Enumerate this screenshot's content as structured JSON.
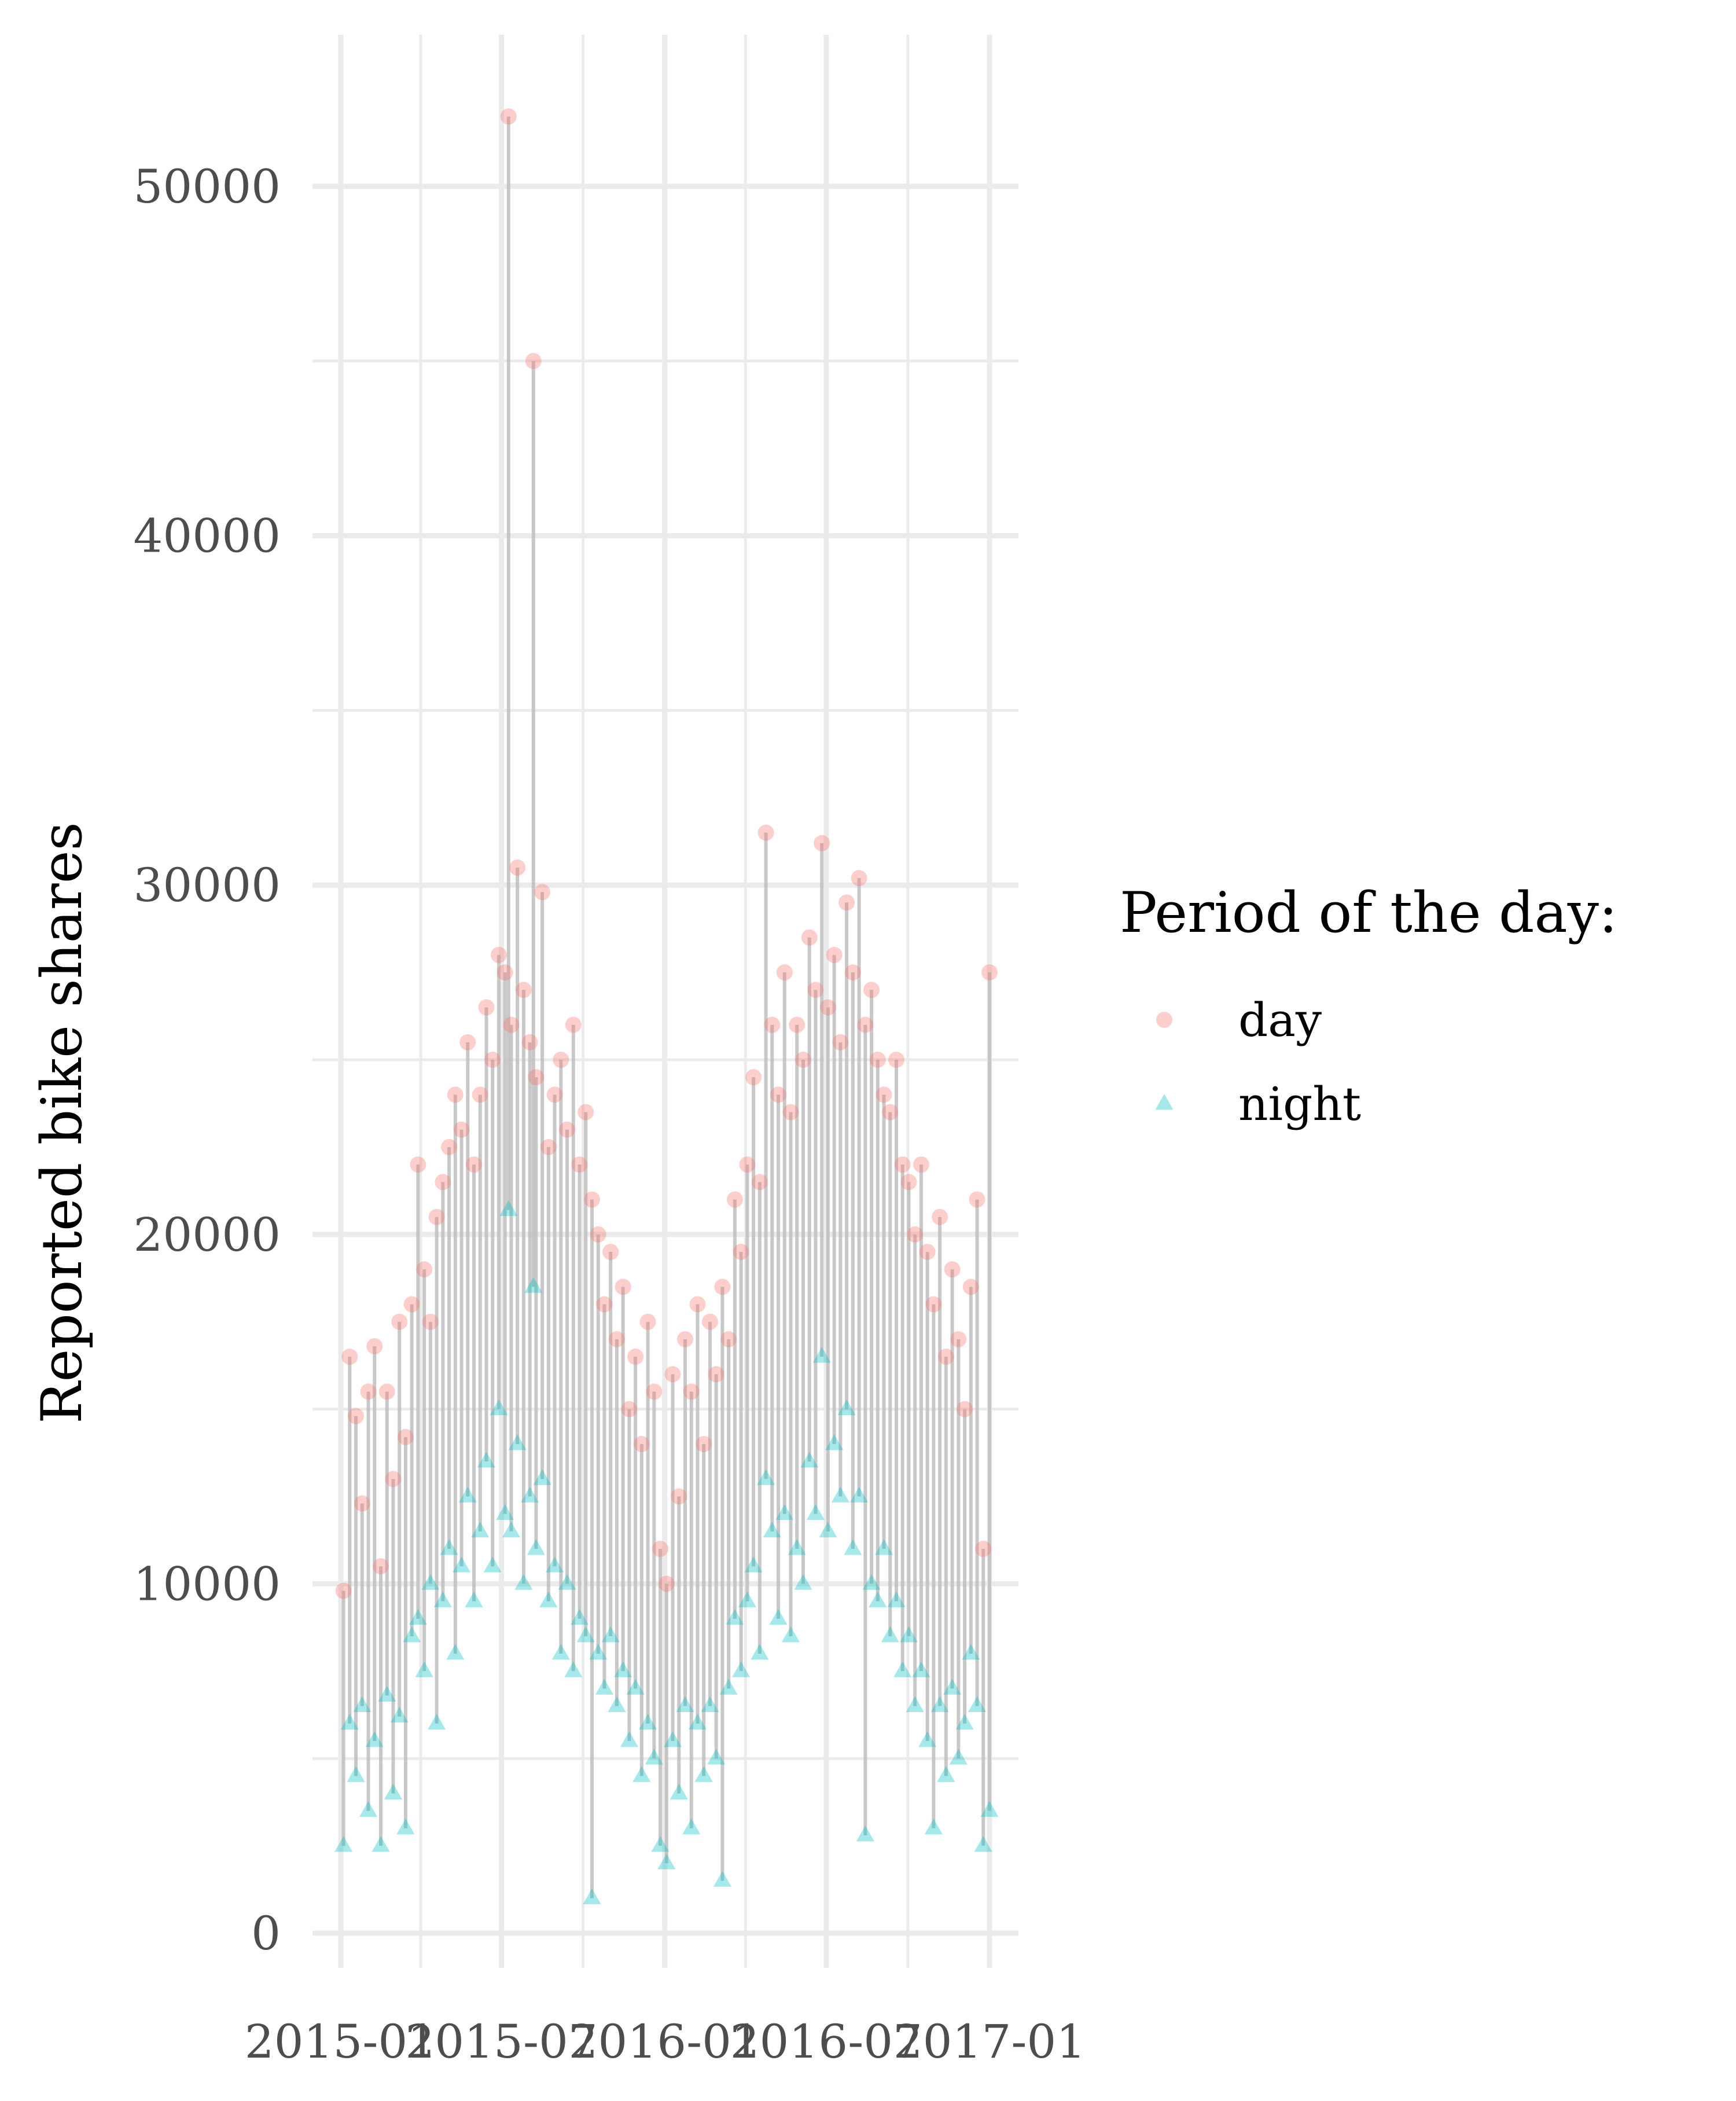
{
  "chart_data": {
    "type": "scatter",
    "title": "",
    "xlabel": "",
    "ylabel": "Reported bike shares",
    "ylim": [
      0,
      52000
    ],
    "xlim": [
      "2015-01-04",
      "2017-01-03"
    ],
    "x_ticks": [
      "2015-01",
      "2015-07",
      "2016-01",
      "2016-07",
      "2017-01"
    ],
    "y_ticks": [
      0,
      10000,
      20000,
      30000,
      40000,
      50000
    ],
    "grid": true,
    "legend": {
      "title": "Period of the day:",
      "placement": "right",
      "entries": [
        {
          "label": "day",
          "shape": "circle",
          "color": "#F8766D"
        },
        {
          "label": "night",
          "shape": "triangle",
          "color": "#00BFC4"
        }
      ]
    },
    "segment_color": "#BEBEBE",
    "series": [
      {
        "name": "day",
        "shape": "circle",
        "color": "#F8766D",
        "points": [
          [
            "2015-01-04",
            9800
          ],
          [
            "2015-01-11",
            16500
          ],
          [
            "2015-01-18",
            14800
          ],
          [
            "2015-01-25",
            12300
          ],
          [
            "2015-02-01",
            15500
          ],
          [
            "2015-02-08",
            16800
          ],
          [
            "2015-02-15",
            10500
          ],
          [
            "2015-02-22",
            15500
          ],
          [
            "2015-03-01",
            13000
          ],
          [
            "2015-03-08",
            17500
          ],
          [
            "2015-03-15",
            14200
          ],
          [
            "2015-03-22",
            18000
          ],
          [
            "2015-03-29",
            22000
          ],
          [
            "2015-04-05",
            19000
          ],
          [
            "2015-04-12",
            17500
          ],
          [
            "2015-04-19",
            20500
          ],
          [
            "2015-04-26",
            21500
          ],
          [
            "2015-05-03",
            22500
          ],
          [
            "2015-05-10",
            24000
          ],
          [
            "2015-05-17",
            23000
          ],
          [
            "2015-05-24",
            25500
          ],
          [
            "2015-05-31",
            22000
          ],
          [
            "2015-06-07",
            24000
          ],
          [
            "2015-06-14",
            26500
          ],
          [
            "2015-06-21",
            25000
          ],
          [
            "2015-06-28",
            28000
          ],
          [
            "2015-07-05",
            27500
          ],
          [
            "2015-07-09",
            52000
          ],
          [
            "2015-07-12",
            26000
          ],
          [
            "2015-07-19",
            30500
          ],
          [
            "2015-07-26",
            27000
          ],
          [
            "2015-08-02",
            25500
          ],
          [
            "2015-08-06",
            45000
          ],
          [
            "2015-08-09",
            24500
          ],
          [
            "2015-08-16",
            29800
          ],
          [
            "2015-08-23",
            22500
          ],
          [
            "2015-08-30",
            24000
          ],
          [
            "2015-09-06",
            25000
          ],
          [
            "2015-09-13",
            23000
          ],
          [
            "2015-09-20",
            26000
          ],
          [
            "2015-09-27",
            22000
          ],
          [
            "2015-10-04",
            23500
          ],
          [
            "2015-10-11",
            21000
          ],
          [
            "2015-10-18",
            20000
          ],
          [
            "2015-10-25",
            18000
          ],
          [
            "2015-11-01",
            19500
          ],
          [
            "2015-11-08",
            17000
          ],
          [
            "2015-11-15",
            18500
          ],
          [
            "2015-11-22",
            15000
          ],
          [
            "2015-11-29",
            16500
          ],
          [
            "2015-12-06",
            14000
          ],
          [
            "2015-12-13",
            17500
          ],
          [
            "2015-12-20",
            15500
          ],
          [
            "2015-12-27",
            11000
          ],
          [
            "2016-01-03",
            10000
          ],
          [
            "2016-01-10",
            16000
          ],
          [
            "2016-01-17",
            12500
          ],
          [
            "2016-01-24",
            17000
          ],
          [
            "2016-01-31",
            15500
          ],
          [
            "2016-02-07",
            18000
          ],
          [
            "2016-02-14",
            14000
          ],
          [
            "2016-02-21",
            17500
          ],
          [
            "2016-02-28",
            16000
          ],
          [
            "2016-03-06",
            18500
          ],
          [
            "2016-03-13",
            17000
          ],
          [
            "2016-03-20",
            21000
          ],
          [
            "2016-03-27",
            19500
          ],
          [
            "2016-04-03",
            22000
          ],
          [
            "2016-04-10",
            24500
          ],
          [
            "2016-04-17",
            21500
          ],
          [
            "2016-04-24",
            31500
          ],
          [
            "2016-05-01",
            26000
          ],
          [
            "2016-05-08",
            24000
          ],
          [
            "2016-05-15",
            27500
          ],
          [
            "2016-05-22",
            23500
          ],
          [
            "2016-05-29",
            26000
          ],
          [
            "2016-06-05",
            25000
          ],
          [
            "2016-06-12",
            28500
          ],
          [
            "2016-06-19",
            27000
          ],
          [
            "2016-06-26",
            31200
          ],
          [
            "2016-07-03",
            26500
          ],
          [
            "2016-07-10",
            28000
          ],
          [
            "2016-07-17",
            25500
          ],
          [
            "2016-07-24",
            29500
          ],
          [
            "2016-07-31",
            27500
          ],
          [
            "2016-08-07",
            30200
          ],
          [
            "2016-08-14",
            26000
          ],
          [
            "2016-08-21",
            27000
          ],
          [
            "2016-08-28",
            25000
          ],
          [
            "2016-09-04",
            24000
          ],
          [
            "2016-09-11",
            23500
          ],
          [
            "2016-09-18",
            25000
          ],
          [
            "2016-09-25",
            22000
          ],
          [
            "2016-10-02",
            21500
          ],
          [
            "2016-10-09",
            20000
          ],
          [
            "2016-10-16",
            22000
          ],
          [
            "2016-10-23",
            19500
          ],
          [
            "2016-10-30",
            18000
          ],
          [
            "2016-11-06",
            20500
          ],
          [
            "2016-11-13",
            16500
          ],
          [
            "2016-11-20",
            19000
          ],
          [
            "2016-11-27",
            17000
          ],
          [
            "2016-12-04",
            15000
          ],
          [
            "2016-12-11",
            18500
          ],
          [
            "2016-12-18",
            21000
          ],
          [
            "2016-12-25",
            11000
          ],
          [
            "2017-01-01",
            27500
          ]
        ]
      },
      {
        "name": "night",
        "shape": "triangle",
        "color": "#00BFC4",
        "points": [
          [
            "2015-01-04",
            2500
          ],
          [
            "2015-01-11",
            6000
          ],
          [
            "2015-01-18",
            4500
          ],
          [
            "2015-01-25",
            6500
          ],
          [
            "2015-02-01",
            3500
          ],
          [
            "2015-02-08",
            5500
          ],
          [
            "2015-02-15",
            2500
          ],
          [
            "2015-02-22",
            6800
          ],
          [
            "2015-03-01",
            4000
          ],
          [
            "2015-03-08",
            6200
          ],
          [
            "2015-03-15",
            3000
          ],
          [
            "2015-03-22",
            8500
          ],
          [
            "2015-03-29",
            9000
          ],
          [
            "2015-04-05",
            7500
          ],
          [
            "2015-04-12",
            10000
          ],
          [
            "2015-04-19",
            6000
          ],
          [
            "2015-04-26",
            9500
          ],
          [
            "2015-05-03",
            11000
          ],
          [
            "2015-05-10",
            8000
          ],
          [
            "2015-05-17",
            10500
          ],
          [
            "2015-05-24",
            12500
          ],
          [
            "2015-05-31",
            9500
          ],
          [
            "2015-06-07",
            11500
          ],
          [
            "2015-06-14",
            13500
          ],
          [
            "2015-06-21",
            10500
          ],
          [
            "2015-06-28",
            15000
          ],
          [
            "2015-07-05",
            12000
          ],
          [
            "2015-07-09",
            20700
          ],
          [
            "2015-07-12",
            11500
          ],
          [
            "2015-07-19",
            14000
          ],
          [
            "2015-07-26",
            10000
          ],
          [
            "2015-08-02",
            12500
          ],
          [
            "2015-08-06",
            18500
          ],
          [
            "2015-08-09",
            11000
          ],
          [
            "2015-08-16",
            13000
          ],
          [
            "2015-08-23",
            9500
          ],
          [
            "2015-08-30",
            10500
          ],
          [
            "2015-09-06",
            8000
          ],
          [
            "2015-09-13",
            10000
          ],
          [
            "2015-09-20",
            7500
          ],
          [
            "2015-09-27",
            9000
          ],
          [
            "2015-10-04",
            8500
          ],
          [
            "2015-10-11",
            1000
          ],
          [
            "2015-10-18",
            8000
          ],
          [
            "2015-10-25",
            7000
          ],
          [
            "2015-11-01",
            8500
          ],
          [
            "2015-11-08",
            6500
          ],
          [
            "2015-11-15",
            7500
          ],
          [
            "2015-11-22",
            5500
          ],
          [
            "2015-11-29",
            7000
          ],
          [
            "2015-12-06",
            4500
          ],
          [
            "2015-12-13",
            6000
          ],
          [
            "2015-12-20",
            5000
          ],
          [
            "2015-12-27",
            2500
          ],
          [
            "2016-01-03",
            2000
          ],
          [
            "2016-01-10",
            5500
          ],
          [
            "2016-01-17",
            4000
          ],
          [
            "2016-01-24",
            6500
          ],
          [
            "2016-01-31",
            3000
          ],
          [
            "2016-02-07",
            6000
          ],
          [
            "2016-02-14",
            4500
          ],
          [
            "2016-02-21",
            6500
          ],
          [
            "2016-02-28",
            5000
          ],
          [
            "2016-03-06",
            1500
          ],
          [
            "2016-03-13",
            7000
          ],
          [
            "2016-03-20",
            9000
          ],
          [
            "2016-03-27",
            7500
          ],
          [
            "2016-04-03",
            9500
          ],
          [
            "2016-04-10",
            10500
          ],
          [
            "2016-04-17",
            8000
          ],
          [
            "2016-04-24",
            13000
          ],
          [
            "2016-05-01",
            11500
          ],
          [
            "2016-05-08",
            9000
          ],
          [
            "2016-05-15",
            12000
          ],
          [
            "2016-05-22",
            8500
          ],
          [
            "2016-05-29",
            11000
          ],
          [
            "2016-06-05",
            10000
          ],
          [
            "2016-06-12",
            13500
          ],
          [
            "2016-06-19",
            12000
          ],
          [
            "2016-06-26",
            16500
          ],
          [
            "2016-07-03",
            11500
          ],
          [
            "2016-07-10",
            14000
          ],
          [
            "2016-07-17",
            12500
          ],
          [
            "2016-07-24",
            15000
          ],
          [
            "2016-07-31",
            11000
          ],
          [
            "2016-08-07",
            12500
          ],
          [
            "2016-08-14",
            2800
          ],
          [
            "2016-08-21",
            10000
          ],
          [
            "2016-08-28",
            9500
          ],
          [
            "2016-09-04",
            11000
          ],
          [
            "2016-09-11",
            8500
          ],
          [
            "2016-09-18",
            9500
          ],
          [
            "2016-09-25",
            7500
          ],
          [
            "2016-10-02",
            8500
          ],
          [
            "2016-10-09",
            6500
          ],
          [
            "2016-10-16",
            7500
          ],
          [
            "2016-10-23",
            5500
          ],
          [
            "2016-10-30",
            3000
          ],
          [
            "2016-11-06",
            6500
          ],
          [
            "2016-11-13",
            4500
          ],
          [
            "2016-11-20",
            7000
          ],
          [
            "2016-11-27",
            5000
          ],
          [
            "2016-12-04",
            6000
          ],
          [
            "2016-12-11",
            8000
          ],
          [
            "2016-12-18",
            6500
          ],
          [
            "2016-12-25",
            2500
          ],
          [
            "2017-01-01",
            3500
          ]
        ]
      }
    ]
  }
}
